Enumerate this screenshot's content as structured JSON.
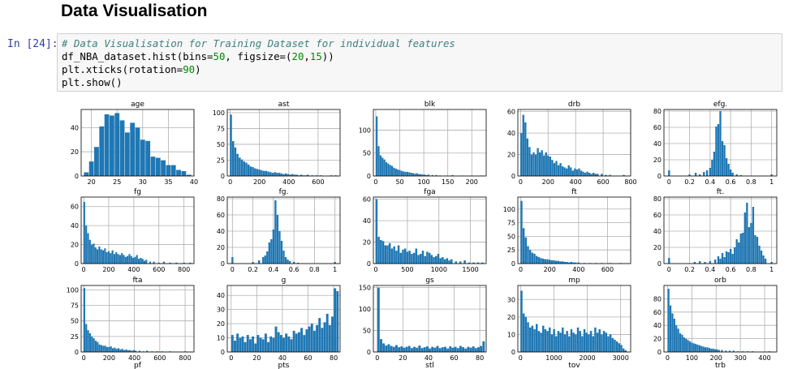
{
  "heading": "Data Visualisation",
  "cell": {
    "prompt": "In [24]:",
    "comment": "# Data Visualisation for Training Dataset for individual features",
    "code_line2_a": "df_NBA_dataset.hist(bins=",
    "code_line2_b": "50",
    "code_line2_c": ", figsize=(",
    "code_line2_d": "20",
    "code_line2_e": ",",
    "code_line2_f": "15",
    "code_line2_g": "))",
    "code_line3_a": "plt.xticks(rotation=",
    "code_line3_b": "90",
    "code_line3_c": ")",
    "code_line4": "plt.show()"
  },
  "colors": {
    "bar": "#1f77b4",
    "grid": "#b0b0b0"
  },
  "chart_data": [
    {
      "type": "bar",
      "title": "age",
      "xlim": [
        18,
        40
      ],
      "ylim": [
        0,
        55
      ],
      "xticks": [
        20,
        25,
        30,
        35,
        40
      ],
      "yticks": [
        0,
        20,
        40
      ],
      "x": [
        19,
        20,
        21,
        22,
        23,
        24,
        25,
        26,
        27,
        28,
        29,
        30,
        31,
        32,
        33,
        34,
        35,
        36,
        37,
        38,
        39
      ],
      "values": [
        3,
        12,
        24,
        41,
        51,
        50,
        52,
        46,
        36,
        44,
        40,
        30,
        29,
        16,
        15,
        13,
        9,
        9,
        5,
        4,
        1
      ]
    },
    {
      "type": "bar",
      "title": "ast",
      "xlim": [
        -20,
        750
      ],
      "ylim": [
        0,
        105
      ],
      "xticks": [
        0,
        200,
        400,
        600
      ],
      "yticks": [
        0,
        25,
        50,
        75,
        100
      ],
      "x": [
        5,
        20,
        35,
        50,
        65,
        80,
        95,
        110,
        125,
        140,
        155,
        170,
        185,
        200,
        215,
        230,
        245,
        260,
        275,
        290,
        305,
        320,
        335,
        350,
        365,
        380,
        395,
        410,
        425,
        440,
        455,
        470,
        485,
        500,
        515,
        530,
        560,
        590,
        620,
        650,
        690,
        720
      ],
      "values": [
        97,
        55,
        45,
        35,
        29,
        26,
        23,
        21,
        18,
        15,
        14,
        12,
        11,
        10,
        9,
        8,
        8,
        7,
        6,
        5,
        6,
        5,
        5,
        4,
        3,
        4,
        3,
        2,
        3,
        2,
        2,
        1,
        2,
        1,
        1,
        2,
        1,
        1,
        1,
        0,
        1,
        1
      ]
    },
    {
      "type": "bar",
      "title": "blk",
      "xlim": [
        -5,
        230
      ],
      "ylim": [
        0,
        145
      ],
      "xticks": [
        0,
        50,
        100,
        150,
        200
      ],
      "yticks": [
        0,
        50,
        100
      ],
      "x": [
        2,
        6,
        10,
        14,
        18,
        22,
        26,
        30,
        34,
        38,
        42,
        46,
        50,
        54,
        58,
        62,
        66,
        70,
        74,
        78,
        82,
        86,
        90,
        94,
        98,
        102,
        106,
        110,
        118,
        126,
        134,
        146,
        160,
        180,
        200,
        220
      ],
      "values": [
        130,
        65,
        45,
        40,
        36,
        30,
        27,
        24,
        22,
        18,
        16,
        14,
        13,
        11,
        10,
        9,
        9,
        8,
        7,
        6,
        5,
        6,
        4,
        4,
        3,
        3,
        2,
        3,
        2,
        2,
        1,
        1,
        2,
        1,
        1,
        1
      ]
    },
    {
      "type": "bar",
      "title": "drb",
      "xlim": [
        -20,
        800
      ],
      "ylim": [
        0,
        62
      ],
      "xticks": [
        0,
        200,
        400,
        600,
        800
      ],
      "yticks": [
        0,
        20,
        40,
        60
      ],
      "x": [
        5,
        20,
        35,
        50,
        65,
        80,
        95,
        110,
        125,
        140,
        155,
        170,
        185,
        200,
        215,
        230,
        245,
        260,
        275,
        290,
        305,
        320,
        335,
        350,
        365,
        380,
        395,
        410,
        425,
        440,
        455,
        470,
        485,
        500,
        515,
        530,
        545,
        560,
        590,
        620,
        650,
        700,
        750
      ],
      "values": [
        40,
        57,
        50,
        35,
        27,
        20,
        22,
        20,
        26,
        22,
        24,
        19,
        22,
        19,
        18,
        15,
        12,
        14,
        10,
        12,
        9,
        8,
        7,
        10,
        8,
        5,
        7,
        6,
        7,
        5,
        4,
        3,
        4,
        3,
        2,
        3,
        2,
        2,
        2,
        1,
        1,
        0,
        1
      ]
    },
    {
      "type": "bar",
      "title": "efg.",
      "xlim": [
        -0.05,
        1.05
      ],
      "ylim": [
        0,
        82
      ],
      "xticks": [
        0.0,
        0.2,
        0.4,
        0.6,
        0.8,
        1.0
      ],
      "yticks": [
        0,
        20,
        40,
        60,
        80
      ],
      "x": [
        0.0,
        0.2,
        0.26,
        0.3,
        0.34,
        0.37,
        0.4,
        0.42,
        0.44,
        0.46,
        0.48,
        0.5,
        0.52,
        0.54,
        0.56,
        0.58,
        0.6,
        0.62,
        0.66,
        0.7,
        1.0
      ],
      "values": [
        7,
        2,
        4,
        2,
        5,
        7,
        10,
        20,
        30,
        61,
        64,
        80,
        43,
        38,
        22,
        15,
        8,
        4,
        2,
        1,
        2
      ]
    },
    {
      "type": "bar",
      "title": "fg",
      "xlim": [
        -20,
        880
      ],
      "ylim": [
        0,
        70
      ],
      "xticks": [
        0,
        200,
        400,
        600,
        800
      ],
      "yticks": [
        0,
        20,
        40,
        60
      ],
      "x": [
        5,
        20,
        35,
        50,
        65,
        80,
        95,
        110,
        125,
        140,
        155,
        170,
        185,
        200,
        215,
        230,
        245,
        260,
        275,
        290,
        305,
        320,
        335,
        350,
        365,
        380,
        395,
        410,
        425,
        440,
        455,
        470,
        485,
        500,
        530,
        560,
        600,
        640,
        690,
        740,
        800,
        850
      ],
      "values": [
        65,
        40,
        32,
        25,
        20,
        21,
        17,
        15,
        18,
        15,
        14,
        16,
        12,
        13,
        11,
        14,
        10,
        12,
        10,
        9,
        11,
        9,
        7,
        8,
        10,
        8,
        6,
        7,
        9,
        5,
        6,
        5,
        3,
        4,
        2,
        2,
        1,
        2,
        1,
        1,
        1,
        1
      ]
    },
    {
      "type": "bar",
      "title": "fg.",
      "xlim": [
        -0.05,
        1.05
      ],
      "ylim": [
        0,
        82
      ],
      "xticks": [
        0.0,
        0.2,
        0.4,
        0.6,
        0.8,
        1.0
      ],
      "yticks": [
        0,
        20,
        40,
        60,
        80
      ],
      "x": [
        0.0,
        0.2,
        0.26,
        0.3,
        0.32,
        0.34,
        0.36,
        0.38,
        0.4,
        0.42,
        0.44,
        0.46,
        0.48,
        0.5,
        0.52,
        0.54,
        0.56,
        0.6,
        0.64,
        1.0
      ],
      "values": [
        8,
        2,
        4,
        8,
        10,
        15,
        26,
        30,
        42,
        78,
        60,
        40,
        28,
        16,
        8,
        5,
        3,
        2,
        1,
        2
      ]
    },
    {
      "type": "bar",
      "title": "fga",
      "xlim": [
        -40,
        1750
      ],
      "ylim": [
        0,
        62
      ],
      "xticks": [
        0,
        500,
        1000,
        1500
      ],
      "yticks": [
        0,
        20,
        40,
        60
      ],
      "x": [
        10,
        45,
        80,
        115,
        150,
        185,
        220,
        255,
        290,
        325,
        360,
        395,
        430,
        465,
        500,
        535,
        570,
        605,
        640,
        675,
        710,
        745,
        780,
        815,
        850,
        885,
        920,
        955,
        990,
        1025,
        1060,
        1095,
        1130,
        1165,
        1200,
        1270,
        1340,
        1410,
        1480,
        1550,
        1620,
        1690
      ],
      "values": [
        60,
        25,
        22,
        21,
        17,
        17,
        19,
        14,
        16,
        12,
        17,
        10,
        13,
        14,
        11,
        12,
        9,
        10,
        14,
        8,
        9,
        12,
        7,
        11,
        10,
        8,
        6,
        7,
        9,
        5,
        6,
        4,
        5,
        3,
        4,
        2,
        2,
        3,
        1,
        1,
        1,
        1
      ]
    },
    {
      "type": "bar",
      "title": "ft",
      "xlim": [
        -20,
        760
      ],
      "ylim": [
        0,
        122
      ],
      "xticks": [
        0,
        200,
        400,
        600
      ],
      "yticks": [
        0,
        25,
        50,
        75,
        100
      ],
      "x": [
        5,
        20,
        35,
        50,
        65,
        80,
        95,
        110,
        125,
        140,
        155,
        170,
        185,
        200,
        215,
        230,
        245,
        260,
        275,
        290,
        305,
        320,
        335,
        350,
        365,
        380,
        400,
        440,
        480,
        520,
        560,
        620,
        690
      ],
      "values": [
        115,
        65,
        48,
        32,
        25,
        20,
        18,
        14,
        12,
        10,
        9,
        8,
        8,
        7,
        6,
        6,
        5,
        5,
        4,
        4,
        3,
        3,
        2,
        3,
        2,
        2,
        2,
        1,
        1,
        1,
        1,
        1,
        1
      ]
    },
    {
      "type": "bar",
      "title": "ft.",
      "xlim": [
        -0.05,
        1.05
      ],
      "ylim": [
        0,
        82
      ],
      "xticks": [
        0.0,
        0.2,
        0.4,
        0.6,
        0.8,
        1.0
      ],
      "yticks": [
        0,
        20,
        40,
        60,
        80
      ],
      "x": [
        0.0,
        0.25,
        0.3,
        0.35,
        0.4,
        0.45,
        0.48,
        0.5,
        0.52,
        0.54,
        0.56,
        0.58,
        0.6,
        0.62,
        0.64,
        0.66,
        0.68,
        0.7,
        0.72,
        0.74,
        0.76,
        0.78,
        0.8,
        0.82,
        0.84,
        0.86,
        0.88,
        0.9,
        0.92,
        0.94,
        1.0
      ],
      "values": [
        7,
        2,
        3,
        2,
        3,
        5,
        9,
        6,
        13,
        8,
        15,
        14,
        18,
        12,
        20,
        30,
        26,
        37,
        38,
        63,
        75,
        45,
        50,
        70,
        35,
        33,
        22,
        16,
        10,
        6,
        2
      ]
    },
    {
      "type": "bar",
      "title": "fta",
      "xlim": [
        -20,
        870
      ],
      "ylim": [
        0,
        107
      ],
      "xticks": [
        0,
        200,
        400,
        600,
        800
      ],
      "yticks": [
        0,
        25,
        50,
        75,
        100
      ],
      "x": [
        5,
        20,
        35,
        50,
        65,
        80,
        95,
        110,
        125,
        140,
        155,
        170,
        185,
        200,
        215,
        230,
        245,
        260,
        275,
        290,
        305,
        320,
        335,
        350,
        365,
        380,
        395,
        410,
        440,
        470,
        500,
        540,
        580,
        620,
        680,
        740,
        800
      ],
      "values": [
        103,
        45,
        35,
        30,
        25,
        22,
        18,
        16,
        12,
        11,
        10,
        10,
        8,
        8,
        9,
        6,
        7,
        5,
        6,
        4,
        5,
        3,
        4,
        3,
        3,
        2,
        3,
        2,
        2,
        1,
        2,
        1,
        1,
        1,
        1,
        0,
        1
      ]
    },
    {
      "type": "bar",
      "title": "g",
      "xlim": [
        -3,
        85
      ],
      "ylim": [
        0,
        47
      ],
      "xticks": [
        0,
        20,
        40,
        60,
        80
      ],
      "yticks": [
        0,
        10,
        20,
        30,
        40
      ],
      "x": [
        1,
        3,
        5,
        7,
        9,
        11,
        13,
        15,
        17,
        19,
        21,
        23,
        25,
        27,
        29,
        31,
        33,
        35,
        37,
        39,
        41,
        43,
        45,
        47,
        49,
        51,
        53,
        55,
        57,
        59,
        61,
        63,
        65,
        67,
        69,
        71,
        73,
        75,
        77,
        79,
        81,
        83
      ],
      "values": [
        12,
        8,
        13,
        10,
        11,
        7,
        12,
        9,
        11,
        6,
        12,
        10,
        9,
        13,
        7,
        11,
        10,
        18,
        14,
        12,
        10,
        13,
        11,
        9,
        15,
        13,
        14,
        17,
        12,
        16,
        18,
        20,
        15,
        19,
        24,
        17,
        21,
        27,
        19,
        25,
        45,
        43
      ]
    },
    {
      "type": "bar",
      "title": "gs",
      "xlim": [
        -3,
        85
      ],
      "ylim": [
        0,
        155
      ],
      "xticks": [
        0,
        20,
        40,
        60,
        80
      ],
      "yticks": [
        0,
        50,
        100,
        150
      ],
      "x": [
        1,
        3,
        5,
        7,
        9,
        11,
        13,
        15,
        17,
        19,
        21,
        23,
        25,
        27,
        29,
        31,
        33,
        35,
        37,
        39,
        41,
        43,
        45,
        47,
        49,
        51,
        53,
        55,
        57,
        59,
        61,
        63,
        65,
        67,
        69,
        71,
        73,
        75,
        77,
        79,
        81,
        83
      ],
      "values": [
        150,
        30,
        20,
        15,
        18,
        14,
        12,
        16,
        11,
        13,
        10,
        12,
        14,
        9,
        12,
        10,
        15,
        9,
        11,
        13,
        8,
        12,
        10,
        14,
        9,
        11,
        12,
        8,
        13,
        10,
        12,
        9,
        14,
        11,
        8,
        12,
        10,
        13,
        9,
        11,
        14,
        25
      ]
    },
    {
      "type": "bar",
      "title": "mp",
      "xlim": [
        -80,
        3300
      ],
      "ylim": [
        0,
        38
      ],
      "xticks": [
        0,
        1000,
        2000,
        3000
      ],
      "yticks": [
        0,
        10,
        20,
        30
      ],
      "x": [
        30,
        95,
        160,
        225,
        290,
        355,
        420,
        485,
        550,
        615,
        680,
        745,
        810,
        875,
        940,
        1005,
        1070,
        1135,
        1200,
        1265,
        1330,
        1395,
        1460,
        1525,
        1590,
        1655,
        1720,
        1785,
        1850,
        1915,
        1980,
        2045,
        2110,
        2175,
        2240,
        2305,
        2370,
        2435,
        2500,
        2565,
        2630,
        2695,
        2760,
        2825,
        2890,
        2955,
        3020,
        3085,
        3150
      ],
      "values": [
        35,
        22,
        20,
        17,
        14,
        15,
        13,
        16,
        12,
        11,
        15,
        13,
        12,
        14,
        10,
        13,
        9,
        12,
        11,
        14,
        10,
        12,
        9,
        13,
        11,
        10,
        14,
        12,
        9,
        13,
        11,
        10,
        12,
        9,
        14,
        11,
        13,
        10,
        12,
        11,
        9,
        10,
        8,
        7,
        6,
        5,
        4,
        2,
        1
      ]
    },
    {
      "type": "bar",
      "title": "orb",
      "xlim": [
        -15,
        450
      ],
      "ylim": [
        0,
        100
      ],
      "xticks": [
        0,
        100,
        200,
        300,
        400
      ],
      "yticks": [
        0,
        20,
        40,
        60,
        80
      ],
      "x": [
        4,
        12,
        20,
        28,
        36,
        44,
        52,
        60,
        68,
        76,
        84,
        92,
        100,
        108,
        116,
        124,
        132,
        140,
        148,
        156,
        164,
        172,
        180,
        188,
        196,
        204,
        212,
        224,
        240,
        256,
        272,
        290,
        310,
        330,
        350,
        380,
        420
      ],
      "values": [
        95,
        70,
        58,
        50,
        40,
        35,
        28,
        26,
        22,
        20,
        18,
        16,
        14,
        13,
        12,
        11,
        10,
        9,
        8,
        7,
        7,
        6,
        5,
        5,
        4,
        4,
        3,
        3,
        2,
        2,
        2,
        1,
        1,
        1,
        1,
        0,
        1
      ]
    }
  ],
  "bottom_labels": [
    "pf",
    "pts",
    "stl",
    "tov",
    "trb"
  ]
}
